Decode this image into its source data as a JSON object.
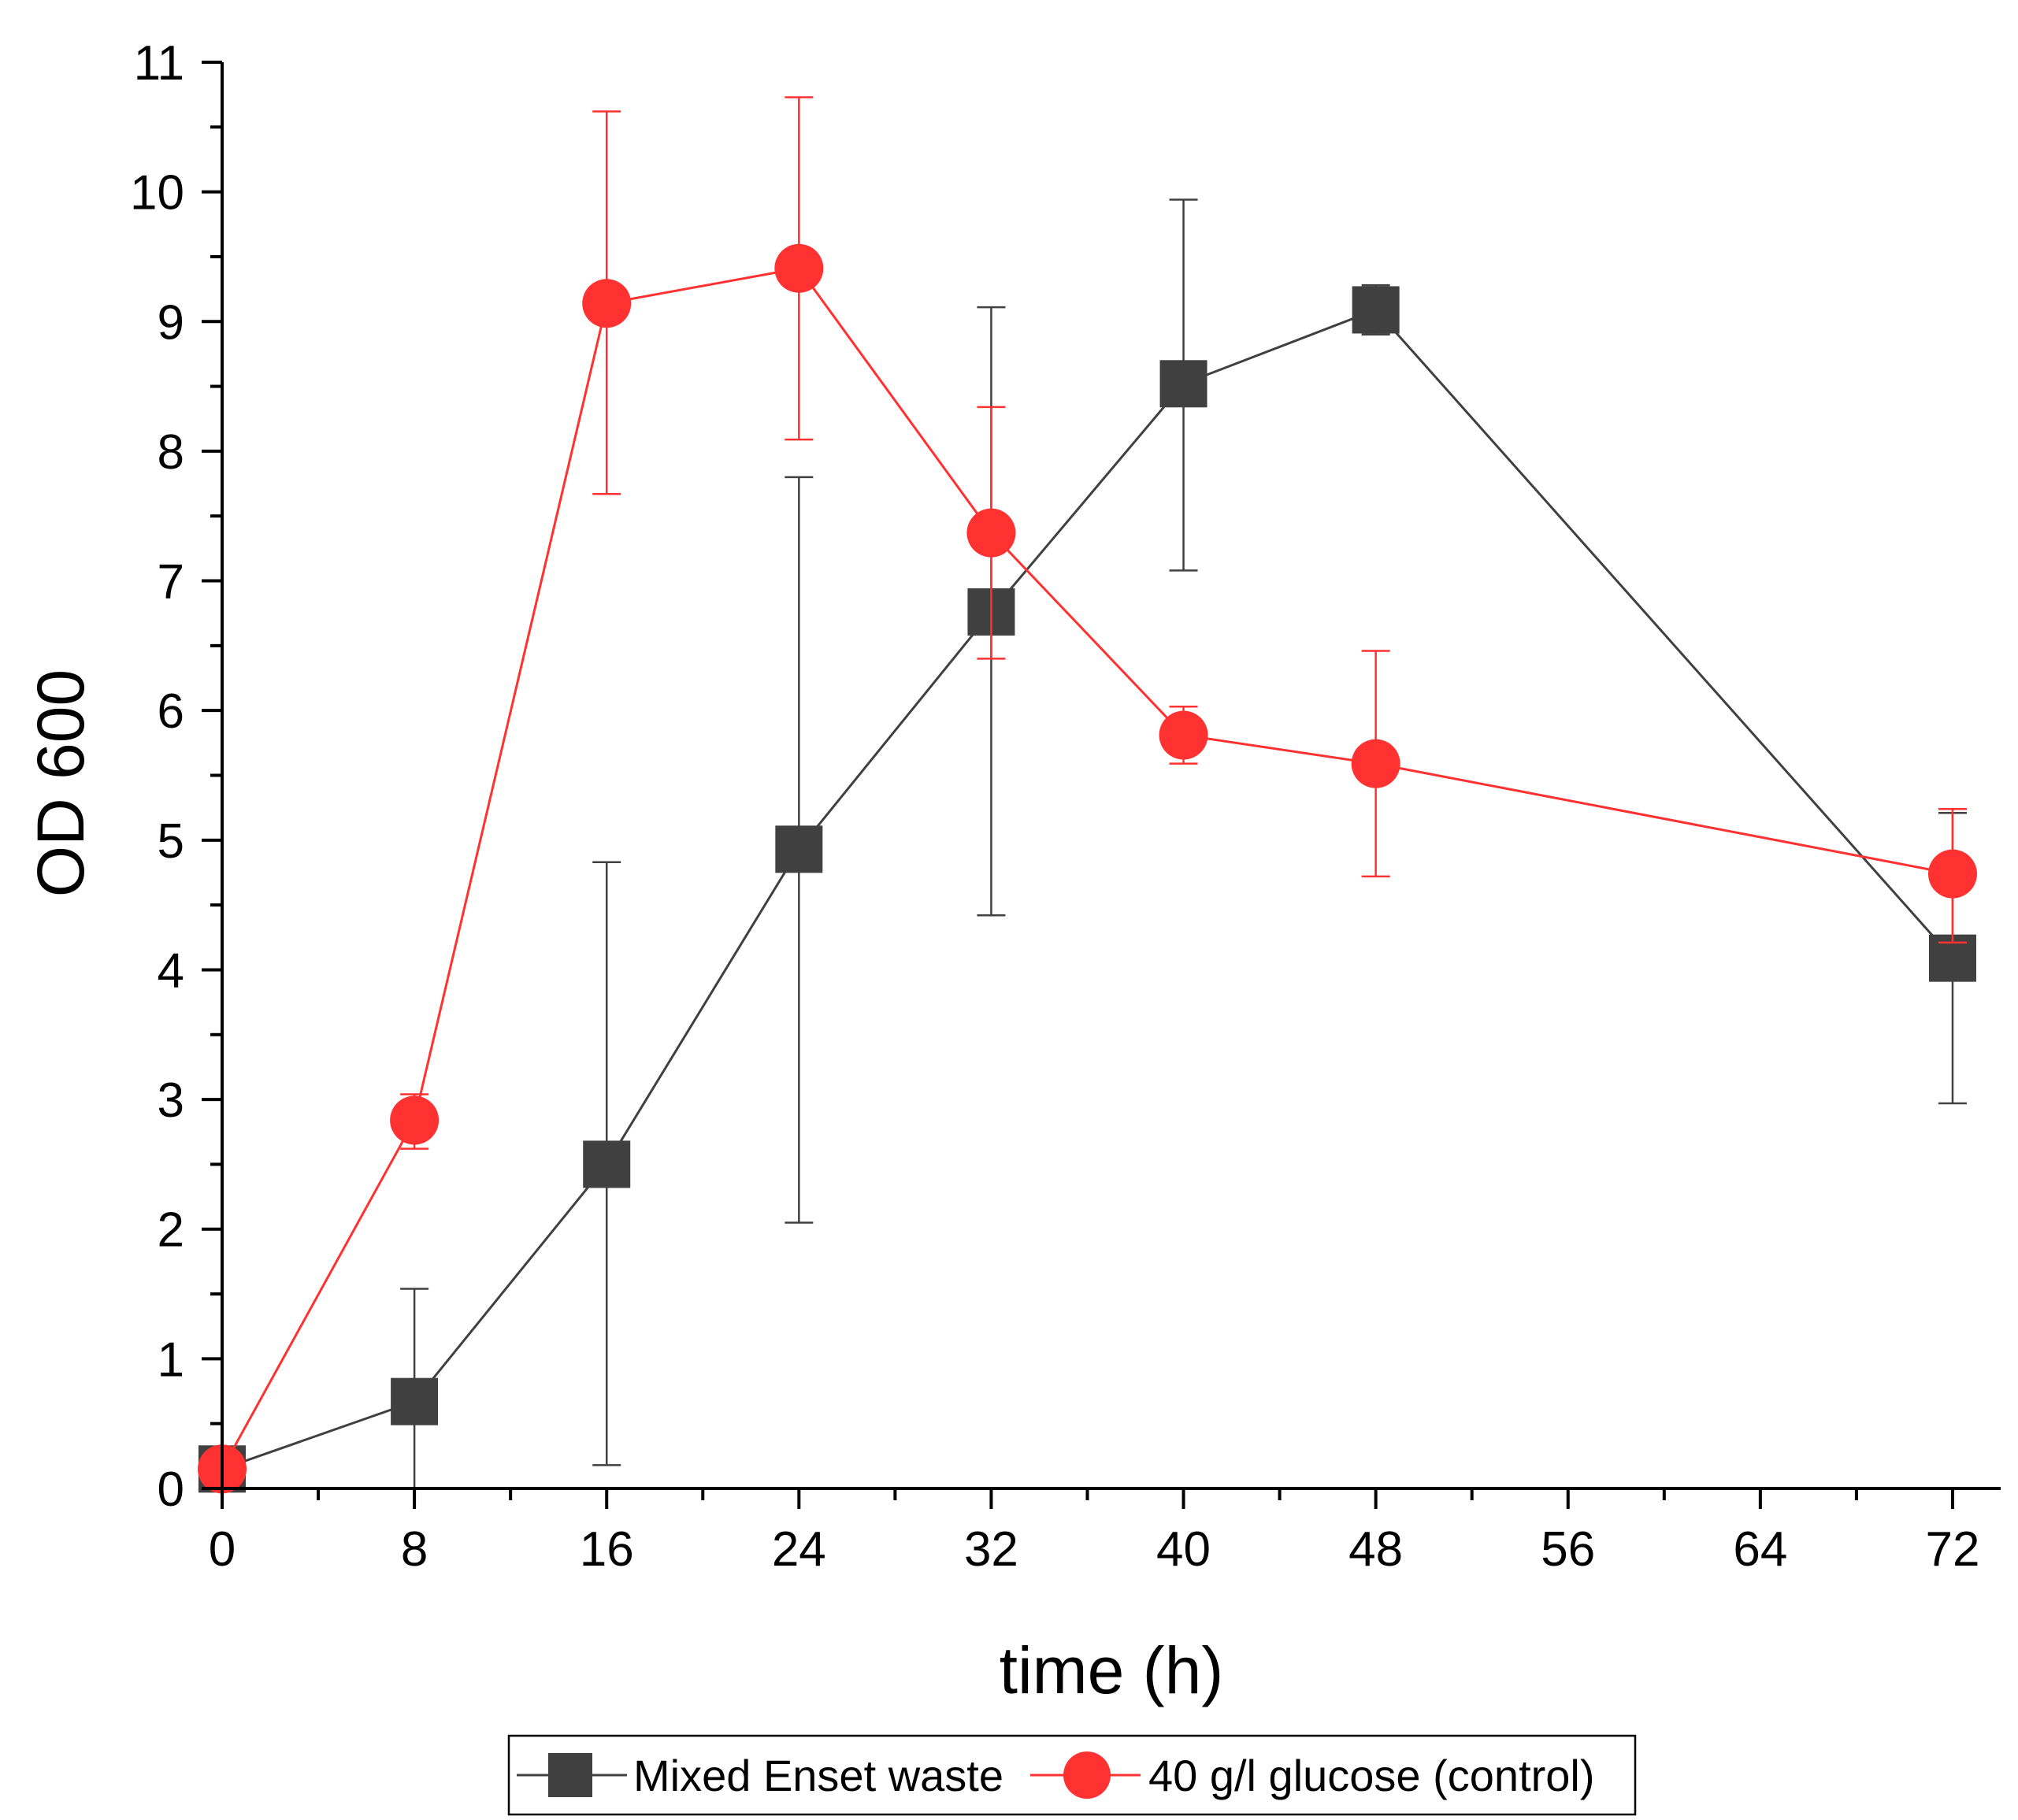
{
  "chart_data": {
    "type": "line",
    "title": "",
    "xlabel": "time (h)",
    "ylabel": "OD 600",
    "xlim": [
      0,
      74
    ],
    "ylim": [
      0,
      11
    ],
    "x_major_ticks": [
      0,
      8,
      16,
      24,
      32,
      40,
      48,
      56,
      64,
      72
    ],
    "x_minor_ticks": [
      4,
      12,
      20,
      28,
      36,
      44,
      52,
      60,
      68
    ],
    "x_tick_labels": [
      "0",
      "8",
      "16",
      "24",
      "32",
      "40",
      "48",
      "56",
      "64",
      "72"
    ],
    "y_major_ticks": [
      0,
      1,
      2,
      3,
      4,
      5,
      6,
      7,
      8,
      9,
      10,
      11
    ],
    "y_minor_ticks": [
      0.5,
      1.5,
      2.5,
      3.5,
      4.5,
      5.5,
      6.5,
      7.5,
      8.5,
      9.5,
      10.5
    ],
    "y_tick_labels": [
      "0",
      "1",
      "2",
      "3",
      "4",
      "5",
      "6",
      "7",
      "8",
      "9",
      "10",
      "11"
    ],
    "legend_position": "bottom-center",
    "series": [
      {
        "name": "Mixed Enset waste",
        "color": "#404040",
        "marker": "square",
        "x": [
          0,
          8,
          16,
          24,
          32,
          40,
          48,
          72
        ],
        "y": [
          0.15,
          0.67,
          2.5,
          4.93,
          6.76,
          8.52,
          9.09,
          4.09
        ],
        "error_low": [
          0.15,
          0.67,
          2.32,
          2.88,
          2.34,
          1.44,
          0.19,
          1.12
        ],
        "error_high": [
          0,
          0.87,
          2.33,
          2.87,
          2.35,
          1.42,
          0.19,
          1.12
        ]
      },
      {
        "name": "40 g/l glucose (control)",
        "color": "#ff3131",
        "marker": "circle",
        "x": [
          0,
          8,
          16,
          24,
          32,
          40,
          48,
          72
        ],
        "y": [
          0.15,
          2.84,
          9.14,
          9.41,
          7.37,
          5.81,
          5.59,
          4.74
        ],
        "error_low": [
          0,
          0.22,
          1.47,
          1.32,
          0.97,
          0.22,
          0.87,
          0.53
        ],
        "error_high": [
          0,
          0.2,
          1.48,
          1.32,
          0.97,
          0.22,
          0.87,
          0.5
        ]
      }
    ]
  }
}
